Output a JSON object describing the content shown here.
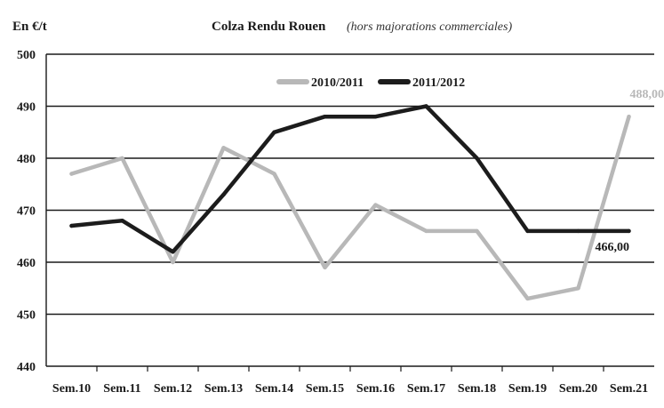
{
  "chart_data": {
    "type": "line",
    "title": "Colza Rendu Rouen",
    "subtitle": "(hors majorations commerciales)",
    "ylabel": "En €/t",
    "categories": [
      "Sem.10",
      "Sem.11",
      "Sem.12",
      "Sem.13",
      "Sem.14",
      "Sem.15",
      "Sem.16",
      "Sem.17",
      "Sem.18",
      "Sem.19",
      "Sem.20",
      "Sem.21"
    ],
    "ylim": [
      440,
      500
    ],
    "yticks": [
      "440",
      "450",
      "460",
      "470",
      "480",
      "490",
      "500"
    ],
    "grid": "horizontal",
    "legend_position": "top",
    "series": [
      {
        "name": "2010/2011",
        "color": "#b8b8b8",
        "values": [
          477,
          480,
          460,
          482,
          477,
          459,
          471,
          466,
          466,
          453,
          455,
          488
        ]
      },
      {
        "name": "2011/2012",
        "color": "#1c1c1c",
        "values": [
          467,
          468,
          462,
          473,
          485,
          488,
          488,
          490,
          480,
          466,
          466,
          466
        ]
      }
    ],
    "annotations": [
      {
        "series": 0,
        "index": 11,
        "text": "488,00"
      },
      {
        "series": 1,
        "index": 11,
        "text": "466,00"
      }
    ]
  }
}
